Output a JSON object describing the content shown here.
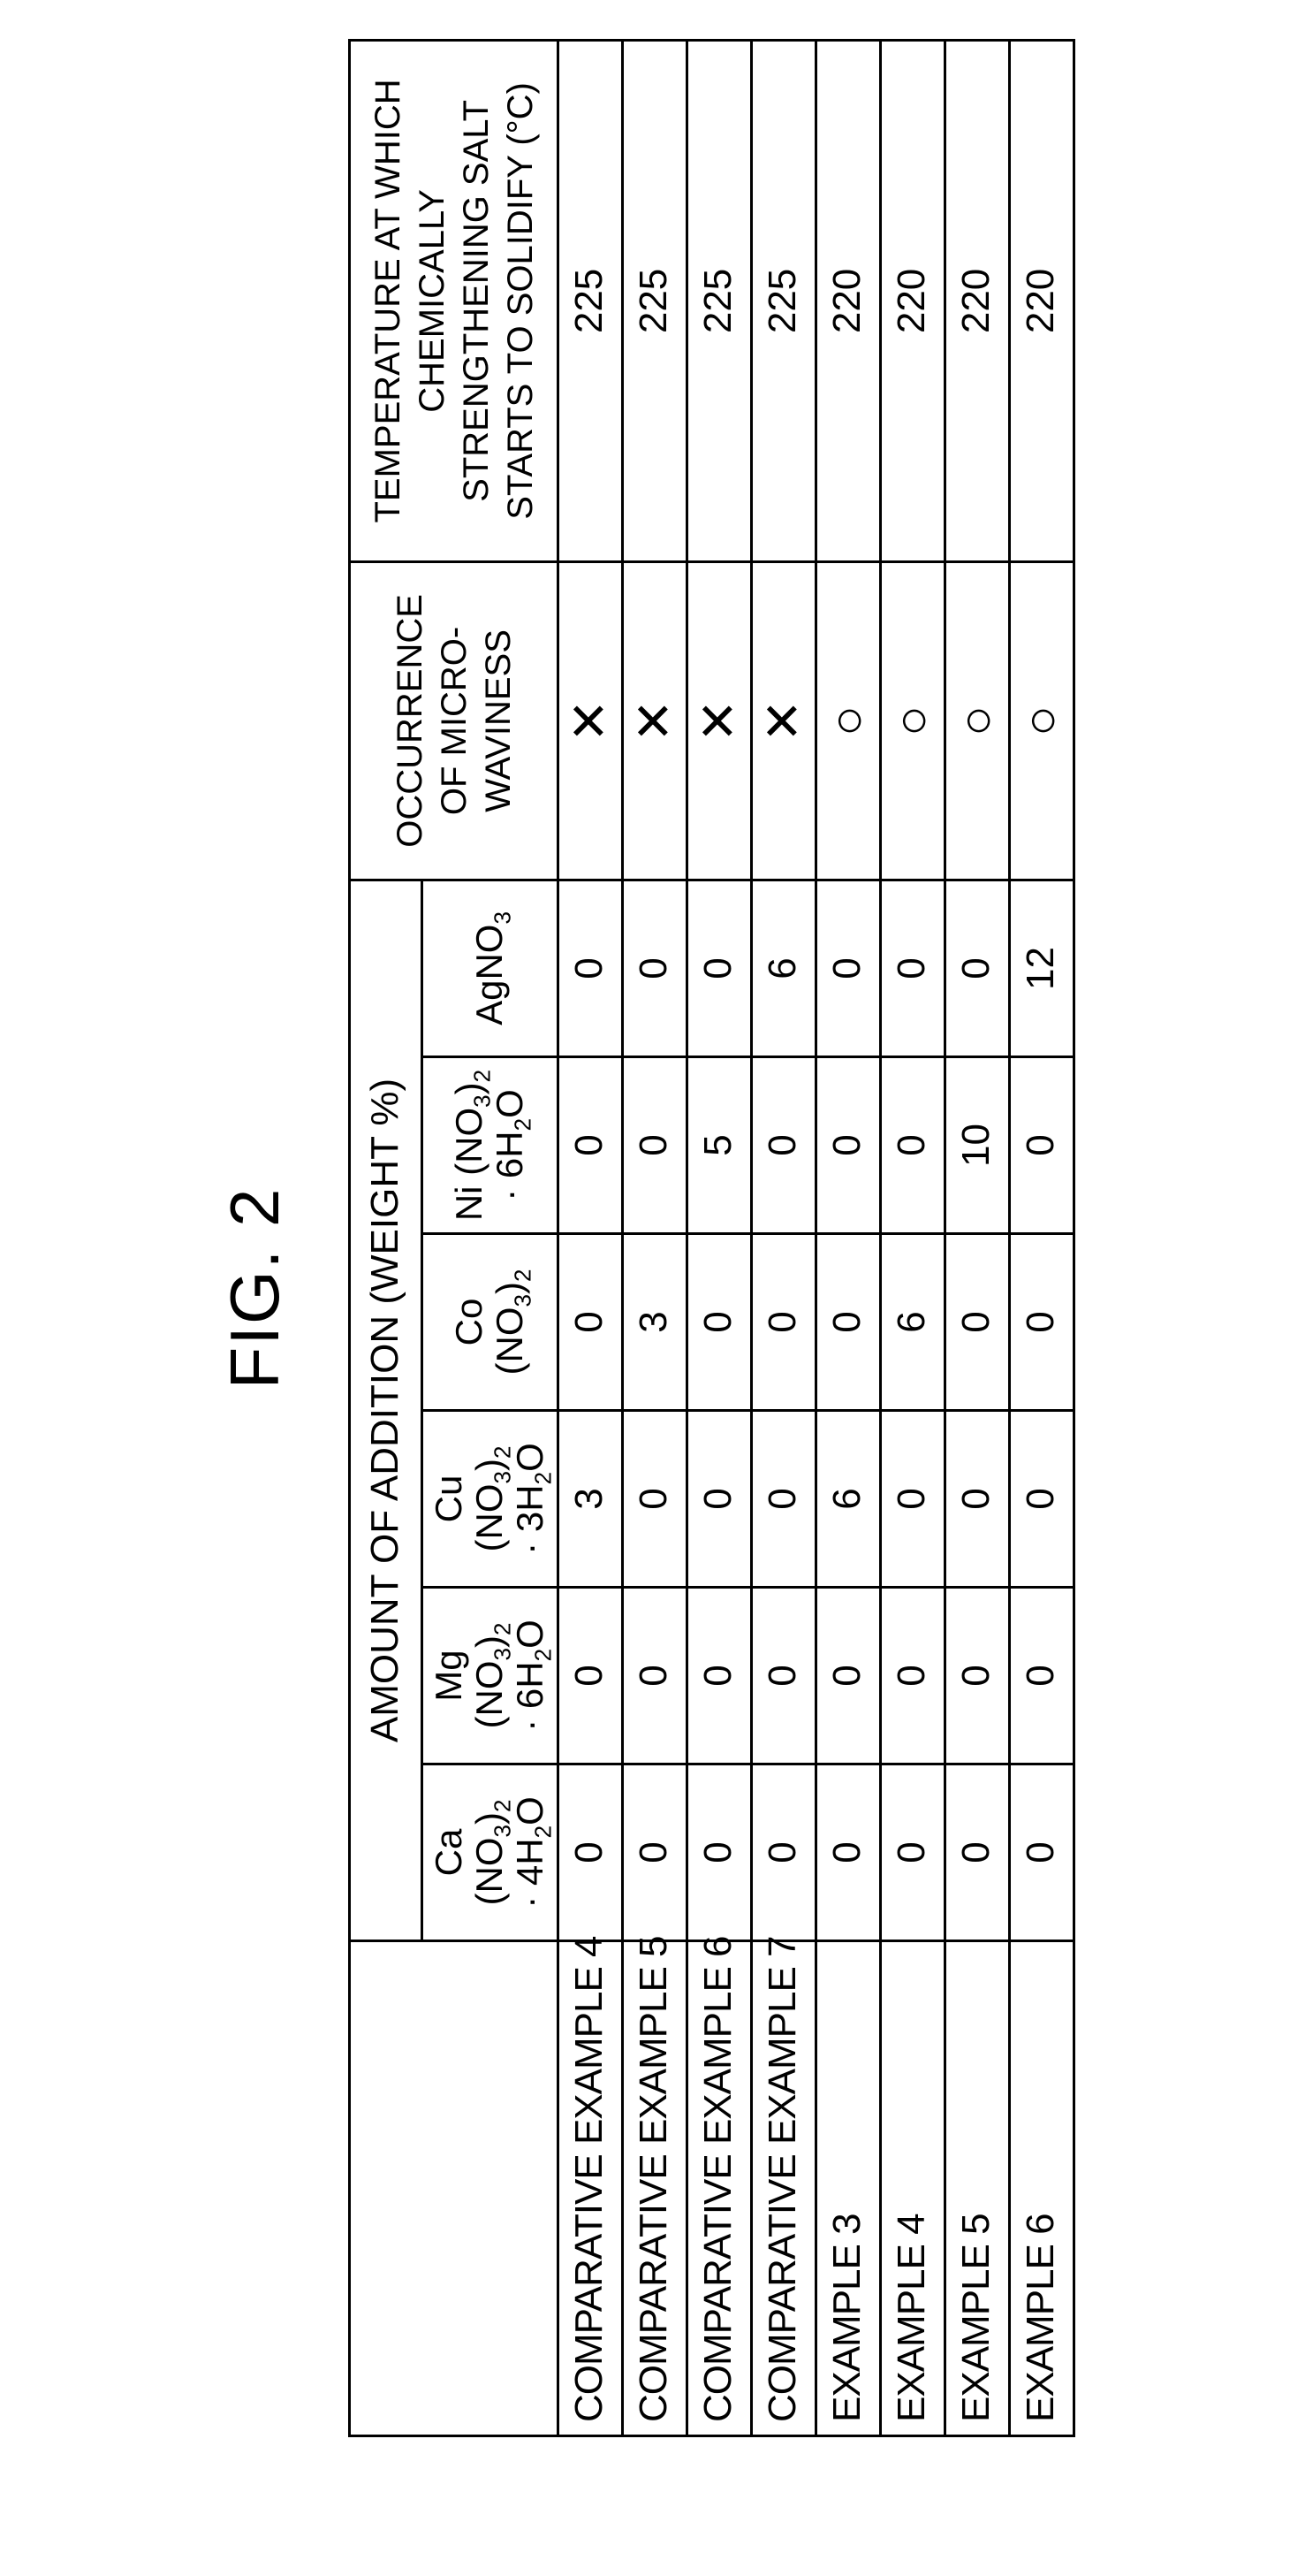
{
  "figure_title": "FIG. 2",
  "headers": {
    "amount": "AMOUNT OF ADDITION (WEIGHT %)",
    "occurrence": "OCCURRENCE OF MICRO-WAVINESS",
    "temperature": "TEMPERATURE AT WHICH CHEMICALLY STRENGTHENING SALT STARTS TO SOLIDIFY (°C)"
  },
  "compounds": {
    "ca": {
      "l1": "Ca (NO",
      "sub1": "3",
      "mid": ")",
      "sub2": "2",
      "l2_pre": "· 4H",
      "l2_sub": "2",
      "l2_post": "O"
    },
    "mg": {
      "l1": "Mg (NO",
      "sub1": "3",
      "mid": ")",
      "sub2": "2",
      "l2_pre": "· 6H",
      "l2_sub": "2",
      "l2_post": "O"
    },
    "cu": {
      "l1": "Cu (NO",
      "sub1": "3",
      "mid": ")",
      "sub2": "2",
      "l2_pre": "· 3H",
      "l2_sub": "2",
      "l2_post": "O"
    },
    "co": {
      "l1": "Co (NO",
      "sub1": "3",
      "mid": ")",
      "sub2": "2"
    },
    "ni": {
      "l1": "Ni (NO",
      "sub1": "3",
      "mid": ")",
      "sub2": "2",
      "l2_pre": "· 6H",
      "l2_sub": "2",
      "l2_post": "O"
    },
    "ag": {
      "l1": "AgNO",
      "sub1": "3"
    }
  },
  "rows": [
    {
      "label": "COMPARATIVE EXAMPLE 4",
      "ca": "0",
      "mg": "0",
      "cu": "3",
      "co": "0",
      "ni": "0",
      "ag": "0",
      "occ": "✕",
      "temp": "225"
    },
    {
      "label": "COMPARATIVE EXAMPLE 5",
      "ca": "0",
      "mg": "0",
      "cu": "0",
      "co": "3",
      "ni": "0",
      "ag": "0",
      "occ": "✕",
      "temp": "225"
    },
    {
      "label": "COMPARATIVE EXAMPLE 6",
      "ca": "0",
      "mg": "0",
      "cu": "0",
      "co": "0",
      "ni": "5",
      "ag": "0",
      "occ": "✕",
      "temp": "225"
    },
    {
      "label": "COMPARATIVE EXAMPLE 7",
      "ca": "0",
      "mg": "0",
      "cu": "0",
      "co": "0",
      "ni": "0",
      "ag": "6",
      "occ": "✕",
      "temp": "225"
    },
    {
      "label": "EXAMPLE 3",
      "ca": "0",
      "mg": "0",
      "cu": "6",
      "co": "0",
      "ni": "0",
      "ag": "0",
      "occ": "○",
      "temp": "220"
    },
    {
      "label": "EXAMPLE 4",
      "ca": "0",
      "mg": "0",
      "cu": "0",
      "co": "6",
      "ni": "0",
      "ag": "0",
      "occ": "○",
      "temp": "220"
    },
    {
      "label": "EXAMPLE 5",
      "ca": "0",
      "mg": "0",
      "cu": "0",
      "co": "0",
      "ni": "10",
      "ag": "0",
      "occ": "○",
      "temp": "220"
    },
    {
      "label": "EXAMPLE 6",
      "ca": "0",
      "mg": "0",
      "cu": "0",
      "co": "0",
      "ni": "0",
      "ag": "12",
      "occ": "○",
      "temp": "220"
    }
  ]
}
